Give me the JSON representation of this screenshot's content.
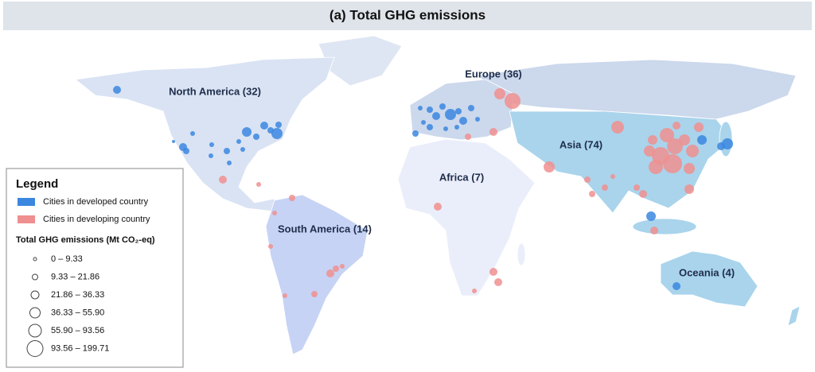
{
  "title": "(a) Total GHG emissions",
  "regions": [
    {
      "label": "North America (32)"
    },
    {
      "label": "Europe (36)"
    },
    {
      "label": "Asia (74)"
    },
    {
      "label": "Africa (7)"
    },
    {
      "label": "South America (14)"
    },
    {
      "label": "Oceania (4)"
    }
  ],
  "legend": {
    "title": "Legend",
    "entries": [
      {
        "label": "Cities in developed country",
        "color": "#3b87e0"
      },
      {
        "label": "Cities in developing country",
        "color": "#f08f8f"
      }
    ],
    "size_title": "Total GHG emissions (Mt CO₂-eq)",
    "size_classes": [
      "0 – 9.33",
      "9.33 – 21.86",
      "21.86 – 36.33",
      "36.33 – 55.90",
      "55.90 – 93.56",
      "93.56 – 199.71"
    ]
  }
}
